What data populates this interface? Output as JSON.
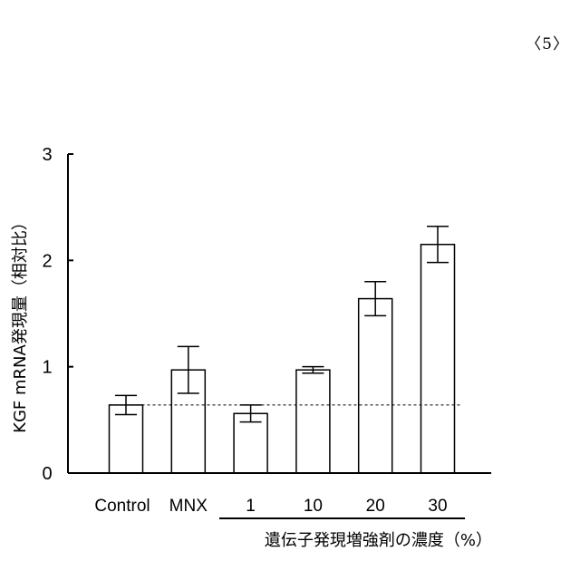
{
  "page": {
    "label": "〈5〉"
  },
  "chart_data": {
    "type": "bar",
    "categories": [
      "Control",
      "MNX",
      "1",
      "10",
      "20",
      "30"
    ],
    "values": [
      0.64,
      0.97,
      0.56,
      0.97,
      1.64,
      2.15
    ],
    "errors": [
      0.09,
      0.22,
      0.08,
      0.03,
      0.16,
      0.17
    ],
    "title": "",
    "ylabel": "KGF mRNA発現量（相対比）",
    "xlabel": "遺伝子発現増強剤の濃度（%）",
    "ylim": [
      0,
      3
    ],
    "yticks": [
      0,
      1,
      2,
      3
    ],
    "reference_line": 0.64,
    "bar_fill": "#ffffff",
    "bar_stroke": "#000000",
    "grid": false,
    "legend": "none"
  }
}
